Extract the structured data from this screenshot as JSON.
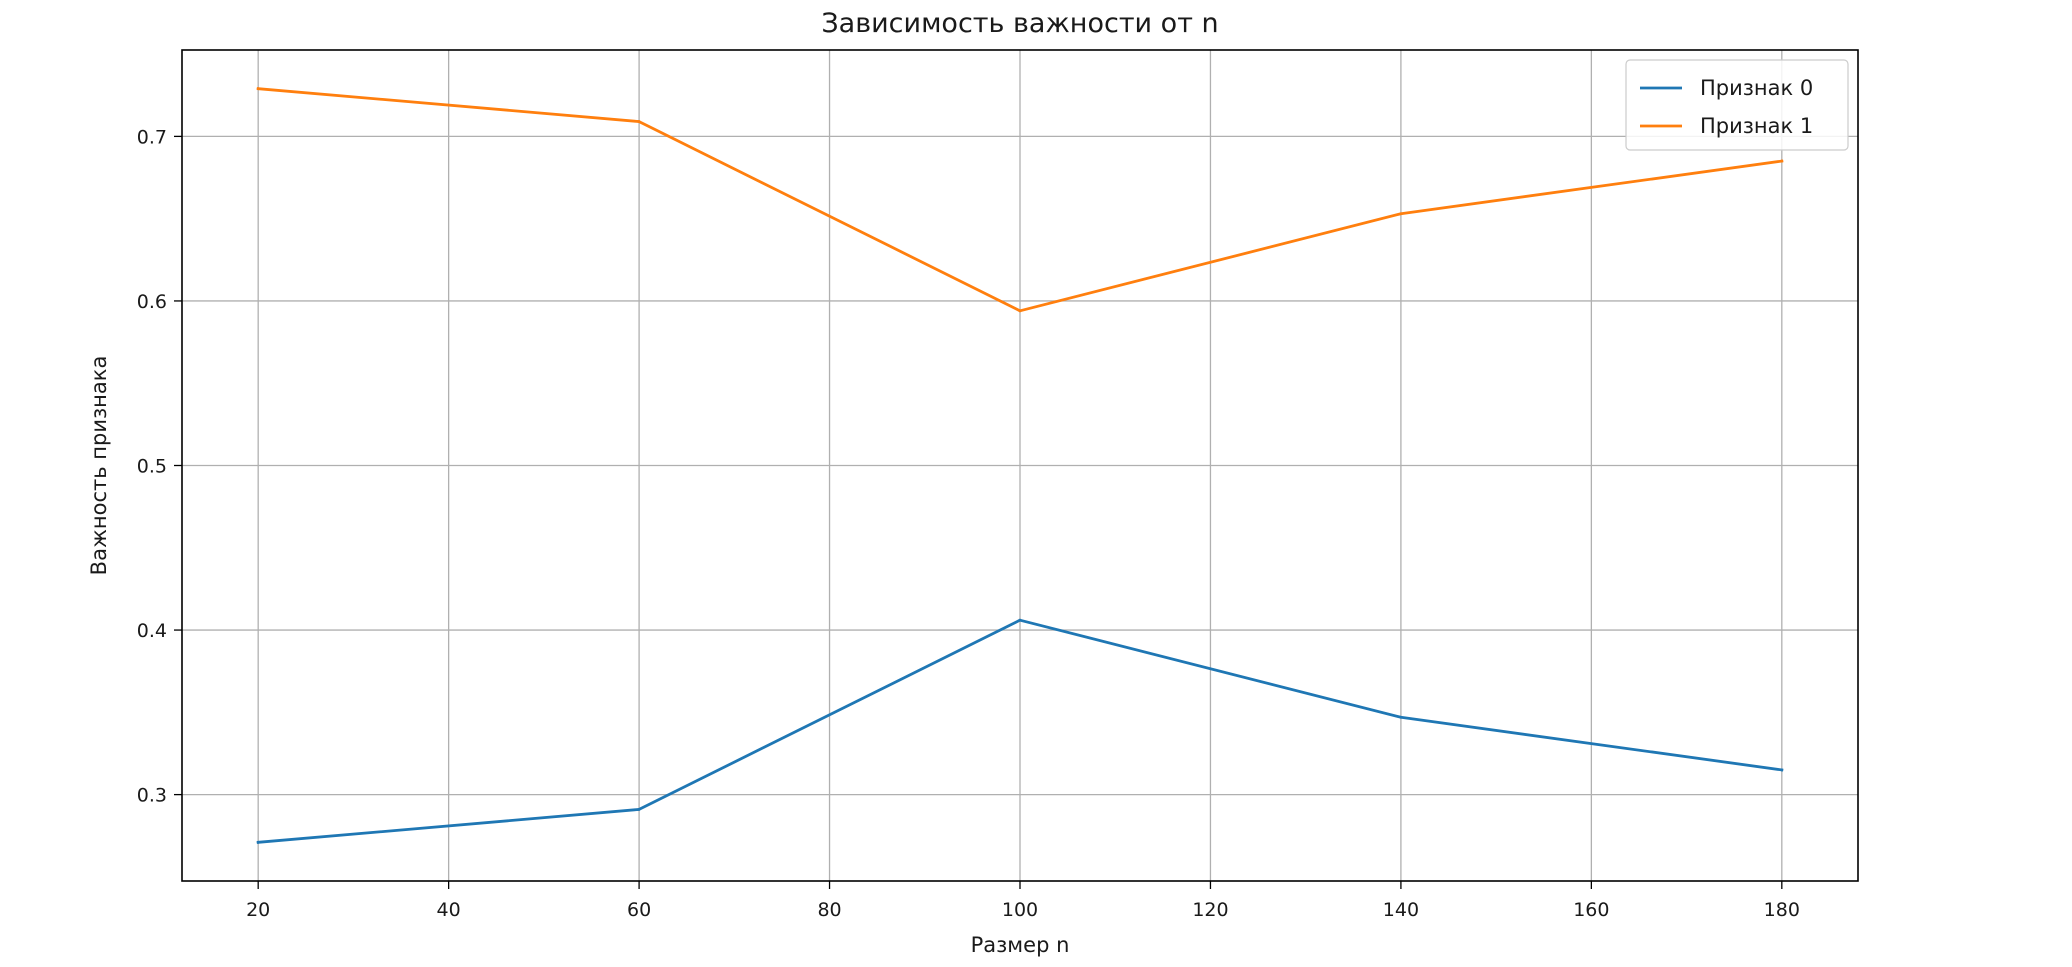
{
  "chart_data": {
    "type": "line",
    "title": "Зависимость важности от n",
    "xlabel": "Размер n",
    "ylabel": "Важность признака",
    "x": [
      20,
      60,
      100,
      140,
      180
    ],
    "series": [
      {
        "name": "Признак 0",
        "values": [
          0.271,
          0.291,
          0.406,
          0.347,
          0.315
        ],
        "color": "#1f77b4"
      },
      {
        "name": "Признак 1",
        "values": [
          0.729,
          0.709,
          0.594,
          0.653,
          0.685
        ],
        "color": "#ff7f0e"
      }
    ],
    "xlim": [
      12,
      188
    ],
    "ylim": [
      0.2475,
      0.7525
    ],
    "xticks": [
      20,
      40,
      60,
      80,
      100,
      120,
      140,
      160,
      180
    ],
    "yticks": [
      0.3,
      0.4,
      0.5,
      0.6,
      0.7
    ],
    "xtick_labels": [
      "20",
      "40",
      "60",
      "80",
      "100",
      "120",
      "140",
      "160",
      "180"
    ],
    "ytick_labels": [
      "0.3",
      "0.4",
      "0.5",
      "0.6",
      "0.7"
    ],
    "grid": true,
    "legend_position": "top-right"
  }
}
